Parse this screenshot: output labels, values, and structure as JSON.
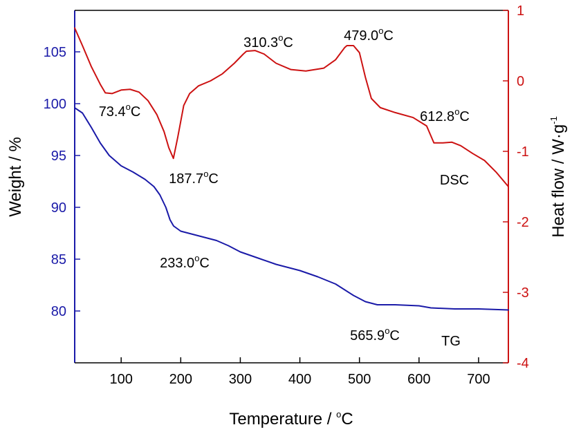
{
  "chart_data": {
    "type": "line",
    "xlabel_main": "Temperature / ",
    "xlabel_sup": "o",
    "xlabel_unit": "C",
    "ylabel_left": "Weight / %",
    "ylabel_right_main": "Heat flow / W·g",
    "ylabel_right_sup": "-1",
    "xlim": [
      22,
      750
    ],
    "ylim_left": [
      75,
      109
    ],
    "ylim_right": [
      -4,
      1
    ],
    "x_ticks": [
      100,
      200,
      300,
      400,
      500,
      600,
      700
    ],
    "x_tick_labels": [
      "100",
      "200",
      "300",
      "400",
      "500",
      "600",
      "700"
    ],
    "left_ticks": [
      80,
      85,
      90,
      95,
      100,
      105
    ],
    "left_tick_labels": [
      "80",
      "85",
      "90",
      "95",
      "100",
      "105"
    ],
    "right_ticks": [
      -4,
      -3,
      -2,
      -1,
      0,
      1
    ],
    "right_tick_labels": [
      "-4",
      "-3",
      "-2",
      "-1",
      "0",
      "1"
    ],
    "colors": {
      "left_axis": "#1a1aa8",
      "right_axis": "#cc1111",
      "frame": "#000000"
    },
    "series": [
      {
        "name": "TG",
        "axis": "left",
        "color": "#1a1aa8",
        "points": [
          [
            22,
            99.6
          ],
          [
            35,
            99.1
          ],
          [
            50,
            97.7
          ],
          [
            65,
            96.2
          ],
          [
            80,
            95.0
          ],
          [
            100,
            94.0
          ],
          [
            120,
            93.4
          ],
          [
            140,
            92.7
          ],
          [
            155,
            92.0
          ],
          [
            165,
            91.2
          ],
          [
            175,
            90.0
          ],
          [
            182,
            88.8
          ],
          [
            188,
            88.2
          ],
          [
            200,
            87.7
          ],
          [
            220,
            87.4
          ],
          [
            240,
            87.1
          ],
          [
            260,
            86.8
          ],
          [
            280,
            86.3
          ],
          [
            300,
            85.7
          ],
          [
            330,
            85.1
          ],
          [
            360,
            84.5
          ],
          [
            400,
            83.9
          ],
          [
            430,
            83.3
          ],
          [
            460,
            82.6
          ],
          [
            490,
            81.5
          ],
          [
            510,
            80.9
          ],
          [
            530,
            80.6
          ],
          [
            560,
            80.6
          ],
          [
            600,
            80.5
          ],
          [
            620,
            80.3
          ],
          [
            660,
            80.2
          ],
          [
            700,
            80.2
          ],
          [
            750,
            80.1
          ]
        ]
      },
      {
        "name": "DSC",
        "axis": "right",
        "color": "#cc1111",
        "points": [
          [
            22,
            0.75
          ],
          [
            35,
            0.5
          ],
          [
            50,
            0.2
          ],
          [
            65,
            -0.05
          ],
          [
            73.4,
            -0.17
          ],
          [
            85,
            -0.18
          ],
          [
            100,
            -0.13
          ],
          [
            115,
            -0.12
          ],
          [
            130,
            -0.16
          ],
          [
            145,
            -0.28
          ],
          [
            160,
            -0.48
          ],
          [
            172,
            -0.72
          ],
          [
            180,
            -0.95
          ],
          [
            187.7,
            -1.1
          ],
          [
            195,
            -0.8
          ],
          [
            205,
            -0.35
          ],
          [
            215,
            -0.18
          ],
          [
            230,
            -0.07
          ],
          [
            250,
            0.0
          ],
          [
            270,
            0.1
          ],
          [
            290,
            0.25
          ],
          [
            305,
            0.38
          ],
          [
            310.3,
            0.42
          ],
          [
            325,
            0.43
          ],
          [
            340,
            0.38
          ],
          [
            360,
            0.25
          ],
          [
            385,
            0.16
          ],
          [
            410,
            0.14
          ],
          [
            440,
            0.18
          ],
          [
            460,
            0.3
          ],
          [
            475,
            0.47
          ],
          [
            479,
            0.5
          ],
          [
            490,
            0.5
          ],
          [
            500,
            0.4
          ],
          [
            510,
            0.05
          ],
          [
            520,
            -0.25
          ],
          [
            535,
            -0.38
          ],
          [
            560,
            -0.45
          ],
          [
            590,
            -0.52
          ],
          [
            612.8,
            -0.64
          ],
          [
            625,
            -0.88
          ],
          [
            640,
            -0.88
          ],
          [
            655,
            -0.87
          ],
          [
            670,
            -0.92
          ],
          [
            690,
            -1.03
          ],
          [
            710,
            -1.13
          ],
          [
            730,
            -1.3
          ],
          [
            750,
            -1.5
          ]
        ]
      }
    ],
    "annotations": [
      {
        "main": "73.4",
        "sup": "o",
        "unit": "C"
      },
      {
        "main": "187.7",
        "sup": "o",
        "unit": "C"
      },
      {
        "main": "310.3",
        "sup": "o",
        "unit": "C"
      },
      {
        "main": "479.0",
        "sup": "o",
        "unit": "C"
      },
      {
        "main": "612.8",
        "sup": "o",
        "unit": "C"
      },
      {
        "main": "233.0",
        "sup": "o",
        "unit": "C"
      },
      {
        "main": "565.9",
        "sup": "o",
        "unit": "C"
      }
    ],
    "series_labels": [
      "DSC",
      "TG"
    ]
  }
}
